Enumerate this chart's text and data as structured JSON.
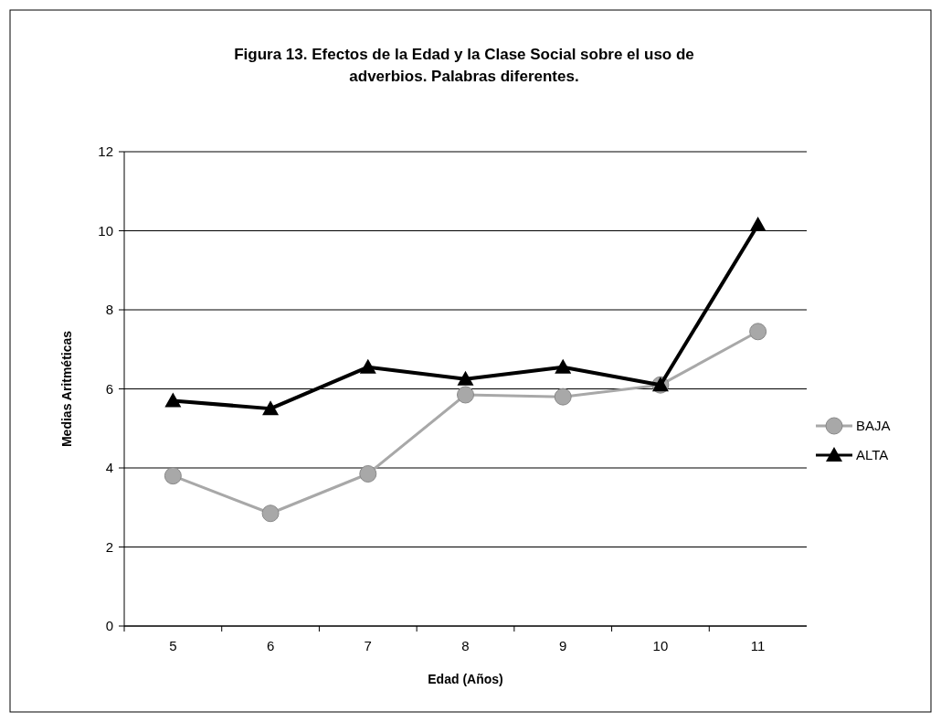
{
  "chart_data": {
    "type": "line",
    "title": "Figura 13.  Efectos de la Edad y la Clase Social sobre el uso de adverbios.  Palabras diferentes.",
    "xlabel": "Edad (Años)",
    "ylabel": "Medias Aritméticas",
    "categories": [
      "5",
      "6",
      "7",
      "8",
      "9",
      "10",
      "11"
    ],
    "series": [
      {
        "name": "BAJA",
        "color": "#a8a8a8",
        "marker": "circle",
        "values": [
          3.8,
          2.85,
          3.85,
          5.85,
          5.8,
          6.1,
          7.45
        ]
      },
      {
        "name": "ALTA",
        "color": "#000000",
        "marker": "triangle",
        "values": [
          5.7,
          5.5,
          6.55,
          6.25,
          6.55,
          6.1,
          10.15
        ]
      }
    ],
    "ylim": [
      0,
      12
    ],
    "yticks": [
      0,
      2,
      4,
      6,
      8,
      10,
      12
    ],
    "grid": "y",
    "legend": "right"
  }
}
